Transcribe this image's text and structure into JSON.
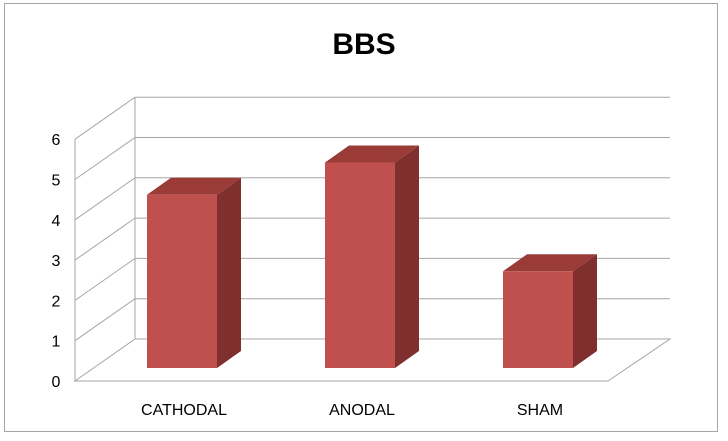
{
  "chart_data": {
    "type": "bar",
    "title": "BBS",
    "categories": [
      "CATHODAL",
      "ANODAL",
      "SHAM"
    ],
    "values": [
      4.3,
      5.1,
      2.4
    ],
    "ylim": [
      0,
      6
    ],
    "yticks": [
      "0",
      "1",
      "2",
      "3",
      "4",
      "5",
      "6"
    ],
    "xlabel": "",
    "ylabel": "",
    "grid": true,
    "legend": "none",
    "colors": {
      "bar_front": "#c0504d",
      "bar_side": "#7f302e",
      "bar_top": "#9a3b38",
      "grid": "#a6a6a6"
    }
  }
}
